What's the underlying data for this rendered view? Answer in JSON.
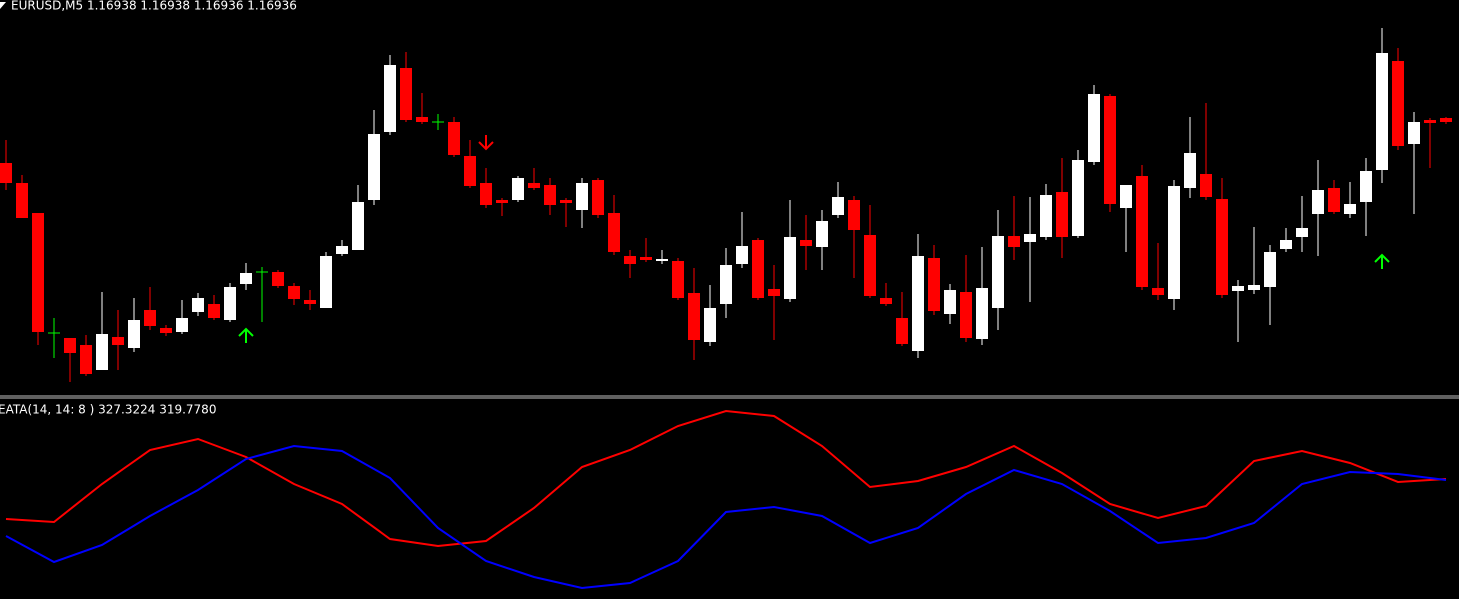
{
  "chart_data": [
    {
      "type": "candlestick",
      "title": "EURUSD,M5  1.16938 1.16938 1.16936 1.16936",
      "up_color": "#ffffff",
      "down_color": "#ff0000",
      "doji_color": "#00ff00",
      "ylim": [
        0,
        372
      ],
      "ohlc": [
        [
          229,
          252,
          202,
          209
        ],
        [
          209,
          217,
          174,
          174
        ],
        [
          179,
          179,
          47,
          60
        ],
        [
          59,
          74,
          34,
          59
        ],
        [
          54,
          54,
          10,
          39
        ],
        [
          47,
          57,
          16,
          18
        ],
        [
          22,
          100,
          22,
          58
        ],
        [
          55,
          82,
          22,
          47
        ],
        [
          44,
          94,
          40,
          72
        ],
        [
          82,
          105,
          62,
          66
        ],
        [
          64,
          67,
          56,
          59
        ],
        [
          60,
          92,
          58,
          74
        ],
        [
          80,
          99,
          76,
          94
        ],
        [
          88,
          97,
          72,
          74
        ],
        [
          72,
          109,
          70,
          105
        ],
        [
          108,
          129,
          102,
          119
        ],
        [
          120,
          125,
          70,
          120
        ],
        [
          120,
          122,
          104,
          106
        ],
        [
          106,
          109,
          87,
          93
        ],
        [
          92,
          102,
          82,
          88
        ],
        [
          84,
          140,
          84,
          136
        ],
        [
          138,
          152,
          136,
          146
        ],
        [
          142,
          207,
          142,
          190
        ],
        [
          192,
          282,
          187,
          258
        ],
        [
          260,
          337,
          257,
          327
        ],
        [
          324,
          340,
          270,
          272
        ],
        [
          275,
          299,
          268,
          270
        ],
        [
          270,
          278,
          262,
          270
        ],
        [
          270,
          275,
          235,
          237
        ],
        [
          236,
          252,
          204,
          206
        ],
        [
          209,
          224,
          184,
          187
        ],
        [
          192,
          194,
          176,
          189
        ],
        [
          192,
          216,
          190,
          214
        ],
        [
          209,
          224,
          202,
          204
        ],
        [
          207,
          214,
          177,
          187
        ],
        [
          192,
          194,
          165,
          189
        ],
        [
          182,
          214,
          164,
          209
        ],
        [
          212,
          214,
          174,
          177
        ],
        [
          179,
          197,
          137,
          140
        ],
        [
          136,
          142,
          114,
          128
        ],
        [
          135,
          154,
          130,
          132
        ],
        [
          131,
          142,
          128,
          133
        ],
        [
          131,
          134,
          92,
          94
        ],
        [
          99,
          124,
          32,
          52
        ],
        [
          50,
          107,
          46,
          84
        ],
        [
          88,
          144,
          74,
          127
        ],
        [
          128,
          180,
          124,
          146
        ],
        [
          152,
          154,
          92,
          94
        ],
        [
          103,
          127,
          52,
          96
        ],
        [
          93,
          192,
          90,
          155
        ],
        [
          152,
          177,
          122,
          146
        ],
        [
          145,
          182,
          122,
          171
        ],
        [
          177,
          210,
          174,
          195
        ],
        [
          192,
          196,
          114,
          162
        ],
        [
          157,
          187,
          94,
          96
        ],
        [
          94,
          109,
          86,
          88
        ],
        [
          74,
          100,
          46,
          48
        ],
        [
          41,
          158,
          34,
          136
        ],
        [
          134,
          147,
          77,
          81
        ],
        [
          78,
          108,
          68,
          102
        ],
        [
          100,
          137,
          50,
          54
        ],
        [
          53,
          145,
          47,
          104
        ],
        [
          84,
          182,
          62,
          156
        ],
        [
          156,
          196,
          132,
          145
        ],
        [
          150,
          195,
          90,
          158
        ],
        [
          155,
          208,
          152,
          197
        ],
        [
          200,
          234,
          134,
          155
        ],
        [
          156,
          242,
          154,
          232
        ],
        [
          230,
          307,
          227,
          298
        ],
        [
          296,
          298,
          180,
          188
        ],
        [
          184,
          207,
          140,
          207
        ],
        [
          216,
          227,
          102,
          105
        ],
        [
          104,
          149,
          92,
          97
        ],
        [
          93,
          212,
          82,
          206
        ],
        [
          204,
          275,
          194,
          239
        ],
        [
          218,
          289,
          192,
          195
        ],
        [
          193,
          214,
          94,
          97
        ],
        [
          101,
          112,
          50,
          106
        ],
        [
          102,
          165,
          98,
          107
        ],
        [
          105,
          147,
          67,
          140
        ],
        [
          143,
          164,
          140,
          152
        ],
        [
          155,
          196,
          140,
          164
        ],
        [
          178,
          232,
          136,
          202
        ],
        [
          204,
          212,
          178,
          180
        ],
        [
          178,
          210,
          174,
          188
        ],
        [
          190,
          234,
          156,
          221
        ],
        [
          222,
          364,
          209,
          339
        ],
        [
          331,
          344,
          242,
          246
        ],
        [
          248,
          280,
          178,
          270
        ],
        [
          272,
          274,
          224,
          269
        ],
        [
          274,
          275,
          268,
          270
        ]
      ]
    },
    {
      "type": "line",
      "title": "EATA(14, 14: 8 ) 327.3224 319.7780",
      "x": [
        0,
        3,
        6,
        9,
        12,
        15,
        18,
        21,
        24,
        27,
        30,
        33,
        36,
        39,
        42,
        45,
        48,
        51,
        54,
        57,
        60,
        63,
        66,
        69,
        72,
        75,
        78,
        81,
        84,
        87,
        90
      ],
      "xlim": [
        0,
        90
      ],
      "ylim": [
        0,
        200
      ],
      "series": [
        {
          "color": "#ff0000",
          "values": [
            81,
            78,
            116,
            150,
            161,
            143,
            116,
            96,
            61,
            54,
            59,
            92,
            133,
            150,
            174,
            189,
            184,
            154,
            113,
            119,
            133,
            154,
            127,
            96,
            82,
            94,
            139,
            149,
            137,
            118,
            121
          ]
        },
        {
          "color": "#0000ff",
          "values": [
            64,
            38,
            55,
            84,
            110,
            141,
            154,
            149,
            122,
            72,
            39,
            23,
            12,
            17,
            39,
            88,
            93,
            84,
            57,
            72,
            106,
            130,
            116,
            89,
            57,
            62,
            77,
            116,
            128,
            126,
            120
          ]
        }
      ]
    }
  ]
}
